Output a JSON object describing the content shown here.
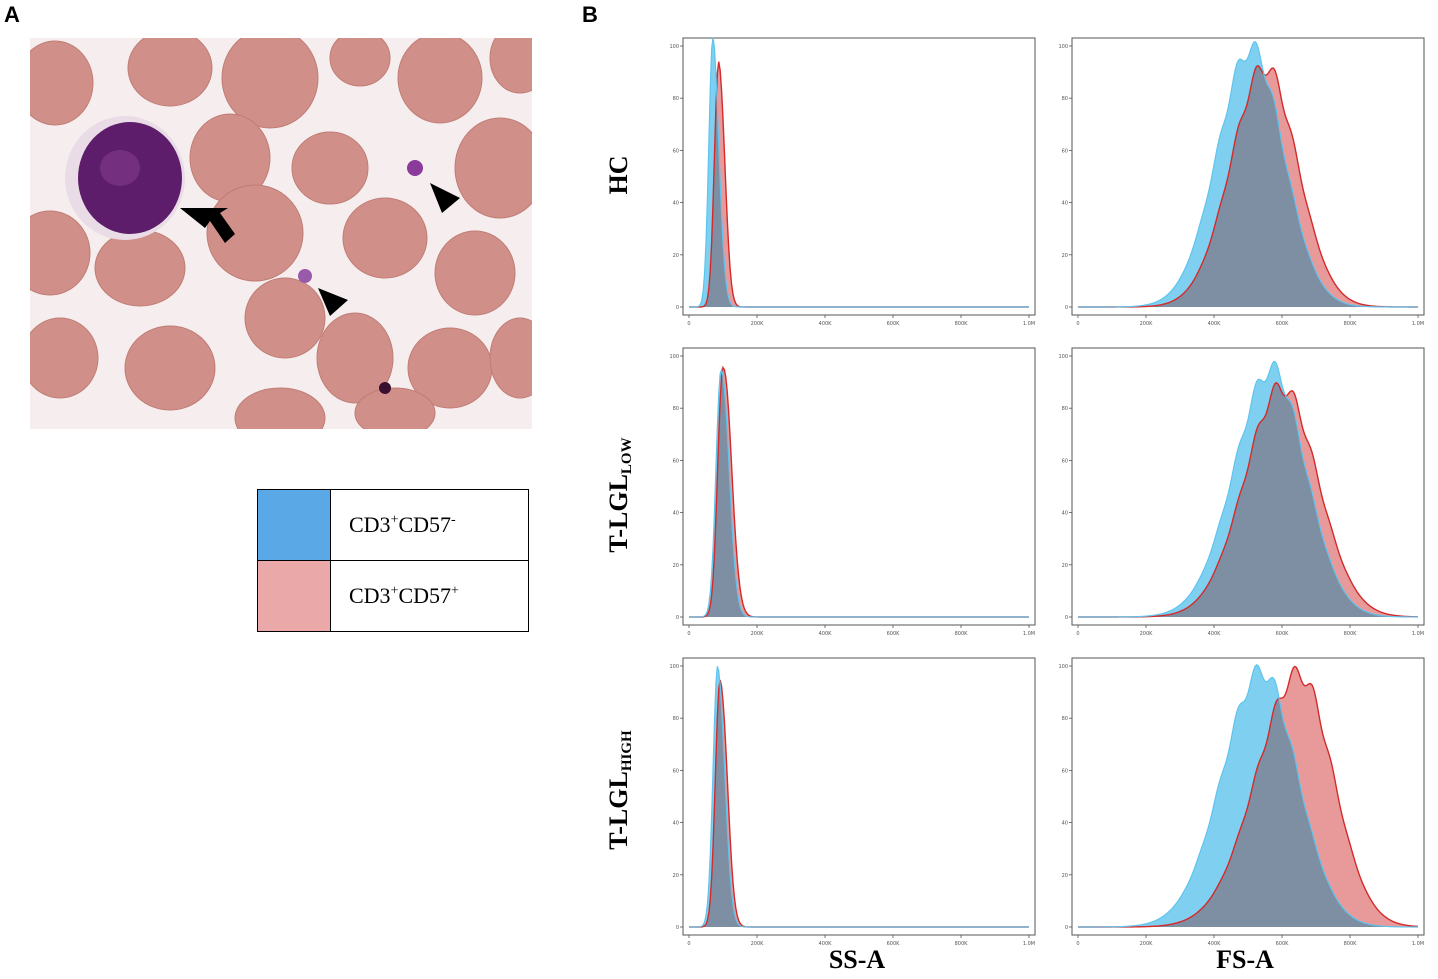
{
  "panel_labels": {
    "a": "A",
    "b": "B"
  },
  "legend": {
    "items": [
      {
        "base": "CD3",
        "sup1": "+",
        "mid": "CD57",
        "sup2": "-",
        "color": "#5aa9e6"
      },
      {
        "base": "CD3",
        "sup1": "+",
        "mid": "CD57",
        "sup2": "+",
        "color": "#eaa8a8"
      }
    ]
  },
  "row_labels": [
    {
      "main": "HC",
      "sub": ""
    },
    {
      "main": "T-LGL",
      "sub": "LOW"
    },
    {
      "main": "T-LGL",
      "sub": "HIGH"
    }
  ],
  "axis_titles": {
    "ss": "SS-A",
    "fs": "FS-A"
  },
  "colors": {
    "blue_fill": "#7fd0f0",
    "blue_line": "#5ec4ee",
    "red_fill": "#e89a9a",
    "red_line": "#d42a2a",
    "overlap": "#7e8fa4",
    "frame": "#555555"
  },
  "chart_data": [
    {
      "type": "area",
      "row": "HC",
      "parameter": "SS-A",
      "xlim": [
        0,
        1000000
      ],
      "ylim": [
        0,
        100
      ],
      "xticks": [
        "0",
        "200K",
        "400K",
        "600K",
        "800K",
        "1.0M"
      ],
      "yticks": [
        "0",
        "20",
        "40",
        "60",
        "80",
        "100"
      ],
      "series": [
        {
          "name": "CD3+CD57-",
          "peak_x": 70000,
          "peak_y": 100,
          "sd_left": 12000,
          "sd_right": 18000
        },
        {
          "name": "CD3+CD57+",
          "peak_x": 88000,
          "peak_y": 95,
          "sd_left": 13000,
          "sd_right": 17000
        }
      ]
    },
    {
      "type": "area",
      "row": "HC",
      "parameter": "FS-A",
      "xlim": [
        0,
        1000000
      ],
      "ylim": [
        0,
        100
      ],
      "xticks": [
        "0",
        "200K",
        "400K",
        "600K",
        "800K",
        "1.0M"
      ],
      "yticks": [
        "0",
        "20",
        "40",
        "60",
        "80",
        "100"
      ],
      "series": [
        {
          "name": "CD3+CD57-",
          "peak_x": 510000,
          "peak_y": 99,
          "sd_left": 100000,
          "sd_right": 95000
        },
        {
          "name": "CD3+CD57+",
          "peak_x": 550000,
          "peak_y": 92,
          "sd_left": 100000,
          "sd_right": 95000
        }
      ]
    },
    {
      "type": "area",
      "row": "T-LGL LOW",
      "parameter": "SS-A",
      "xlim": [
        0,
        1000000
      ],
      "ylim": [
        0,
        100
      ],
      "xticks": [
        "0",
        "200K",
        "400K",
        "600K",
        "800K",
        "1.0M"
      ],
      "yticks": [
        "0",
        "20",
        "40",
        "60",
        "80",
        "100"
      ],
      "series": [
        {
          "name": "CD3+CD57-",
          "peak_x": 95000,
          "peak_y": 98,
          "sd_left": 15000,
          "sd_right": 22000
        },
        {
          "name": "CD3+CD57+",
          "peak_x": 100000,
          "peak_y": 99,
          "sd_left": 15000,
          "sd_right": 24000
        }
      ]
    },
    {
      "type": "area",
      "row": "T-LGL LOW",
      "parameter": "FS-A",
      "xlim": [
        0,
        1000000
      ],
      "ylim": [
        0,
        100
      ],
      "xticks": [
        "0",
        "200K",
        "400K",
        "600K",
        "800K",
        "1.0M"
      ],
      "yticks": [
        "0",
        "20",
        "40",
        "60",
        "80",
        "100"
      ],
      "series": [
        {
          "name": "CD3+CD57-",
          "peak_x": 570000,
          "peak_y": 95,
          "sd_left": 110000,
          "sd_right": 100000
        },
        {
          "name": "CD3+CD57+",
          "peak_x": 600000,
          "peak_y": 88,
          "sd_left": 110000,
          "sd_right": 105000
        }
      ]
    },
    {
      "type": "area",
      "row": "T-LGL HIGH",
      "parameter": "SS-A",
      "xlim": [
        0,
        1000000
      ],
      "ylim": [
        0,
        100
      ],
      "xticks": [
        "0",
        "200K",
        "400K",
        "600K",
        "800K",
        "1.0M"
      ],
      "yticks": [
        "0",
        "20",
        "40",
        "60",
        "80",
        "100"
      ],
      "series": [
        {
          "name": "CD3+CD57-",
          "peak_x": 85000,
          "peak_y": 100,
          "sd_left": 14000,
          "sd_right": 20000
        },
        {
          "name": "CD3+CD57+",
          "peak_x": 92000,
          "peak_y": 97,
          "sd_left": 14000,
          "sd_right": 20000
        }
      ]
    },
    {
      "type": "area",
      "row": "T-LGL HIGH",
      "parameter": "FS-A",
      "xlim": [
        0,
        1000000
      ],
      "ylim": [
        0,
        100
      ],
      "xticks": [
        "0",
        "200K",
        "400K",
        "600K",
        "800K",
        "1.0M"
      ],
      "yticks": [
        "0",
        "20",
        "40",
        "60",
        "80",
        "100"
      ],
      "series": [
        {
          "name": "CD3+CD57-",
          "peak_x": 540000,
          "peak_y": 98,
          "sd_left": 115000,
          "sd_right": 105000
        },
        {
          "name": "CD3+CD57+",
          "peak_x": 650000,
          "peak_y": 97,
          "sd_left": 125000,
          "sd_right": 100000
        }
      ]
    }
  ]
}
